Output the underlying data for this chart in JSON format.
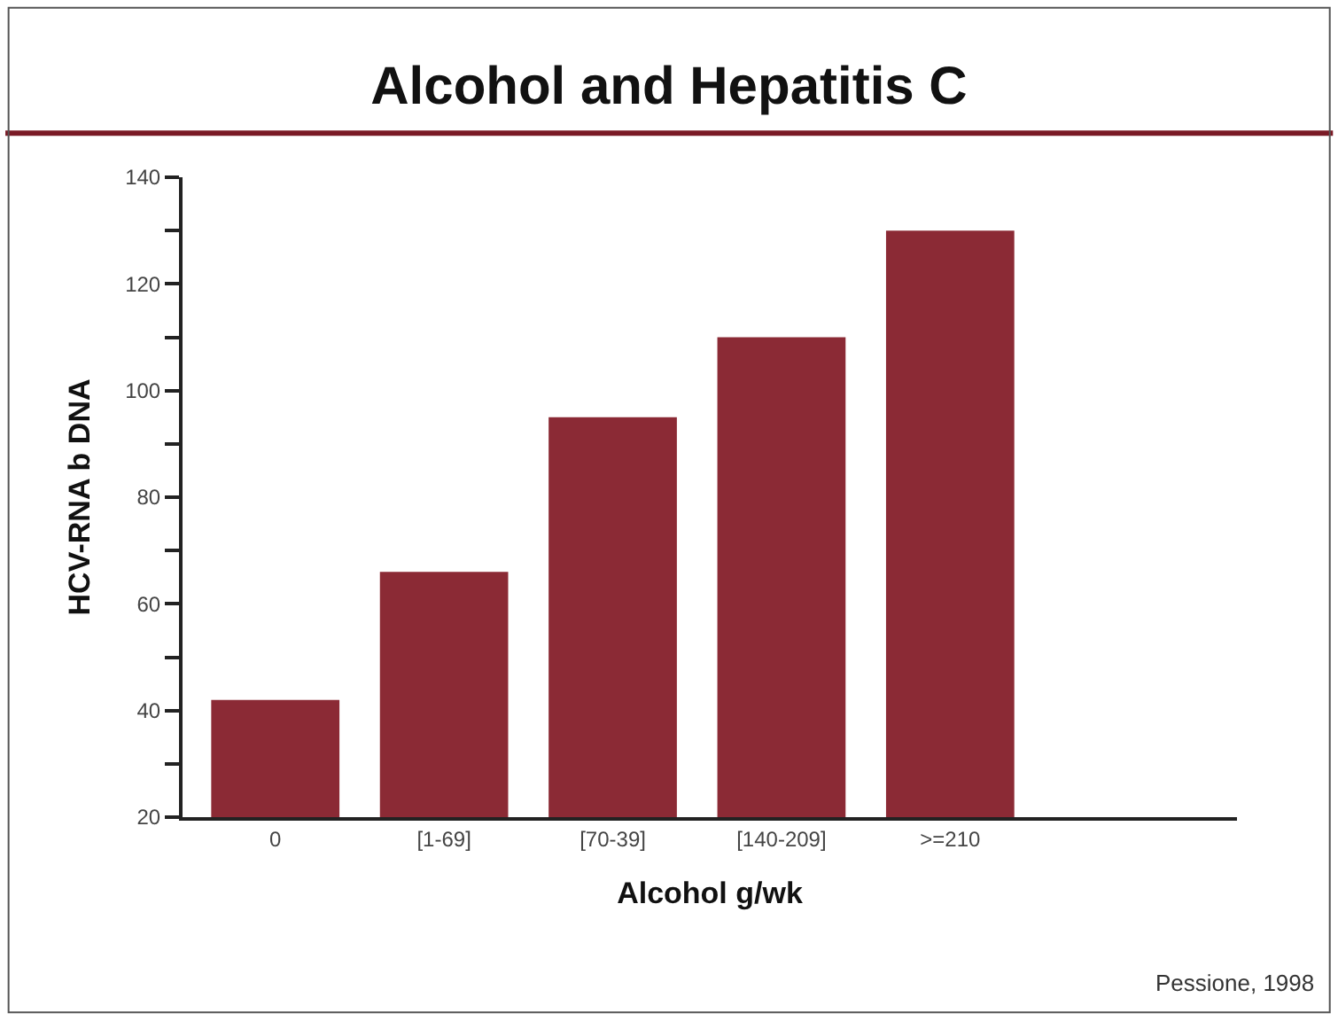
{
  "chart_data": {
    "type": "bar",
    "title": "Alcohol and Hepatitis C",
    "xlabel": "Alcohol g/wk",
    "ylabel": "HCV-RNA b DNA",
    "categories": [
      "0",
      "[1-69]",
      "[70-39]",
      "[140-209]",
      ">=210"
    ],
    "values": [
      42,
      66,
      95,
      110,
      130
    ],
    "color": "#8b2a35",
    "ylim": [
      20,
      140
    ],
    "yticks": [
      20,
      {
        "value": 30,
        "label": null
      },
      40,
      {
        "value": 50,
        "label": null
      },
      60,
      {
        "value": 70,
        "label": null
      },
      80,
      {
        "value": 90,
        "label": null
      },
      100,
      {
        "value": 110,
        "label": null
      },
      120,
      {
        "value": 130,
        "label": null
      },
      140
    ],
    "annotations": [
      "Pessione, 1998"
    ]
  }
}
